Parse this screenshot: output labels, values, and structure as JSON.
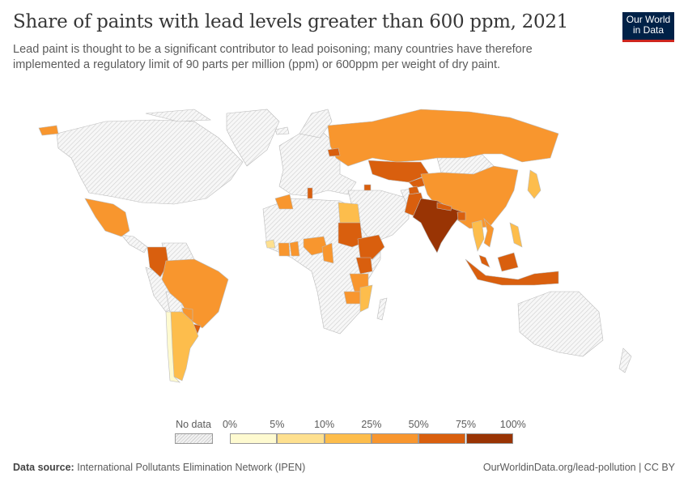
{
  "title": "Share of paints with lead levels greater than 600 ppm, 2021",
  "subtitle": "Lead paint is thought to be a significant contributor to lead poisoning; many countries have therefore implemented a regulatory limit of 90 parts per million (ppm) or 600ppm per weight of dry paint.",
  "logo": {
    "line1": "Our World",
    "line2": "in Data",
    "bg": "#002147",
    "accent": "#ce261e"
  },
  "legend": {
    "no_data_label": "No data",
    "ticks": [
      "0%",
      "5%",
      "10%",
      "25%",
      "50%",
      "75%",
      "100%"
    ],
    "bins": [
      {
        "range": "0-5%",
        "color": "#fefad0"
      },
      {
        "range": "5-10%",
        "color": "#fee08f"
      },
      {
        "range": "10-25%",
        "color": "#fdbd4c"
      },
      {
        "range": "25-50%",
        "color": "#f8962e"
      },
      {
        "range": "50-75%",
        "color": "#d95f0e"
      },
      {
        "range": "75-100%",
        "color": "#993404"
      }
    ]
  },
  "map_data": {
    "russia": 3,
    "kazakhstan": 4,
    "kyrgyzstan": 4,
    "tajikistan": 4,
    "china": 3,
    "india": 5,
    "pakistan": 4,
    "nepal": 4,
    "bangladesh": 4,
    "mexico": 3,
    "colombia": 4,
    "brazil": 3,
    "argentina": 2,
    "chile": 0,
    "paraguay": 3,
    "uruguay": 4,
    "algeria": 3,
    "tunisia": 4,
    "egypt": 2,
    "sudan": 4,
    "ethiopia": 4,
    "kenya": 4,
    "tanzania": 3,
    "nigeria": 3,
    "ghana": 3,
    "cote-divoire": 3,
    "cameroon": 3,
    "mozambique": 2,
    "zambia": 3,
    "senegal": 1,
    "thailand": 2,
    "vietnam": 3,
    "philippines": 2,
    "indonesia": 4,
    "malaysia": 4,
    "japan": 2,
    "belarus": 4,
    "armenia": 4
  },
  "footer": {
    "source_label": "Data source:",
    "source": "International Pollutants Elimination Network (IPEN)",
    "url": "OurWorldinData.org/lead-pollution | CC BY"
  }
}
